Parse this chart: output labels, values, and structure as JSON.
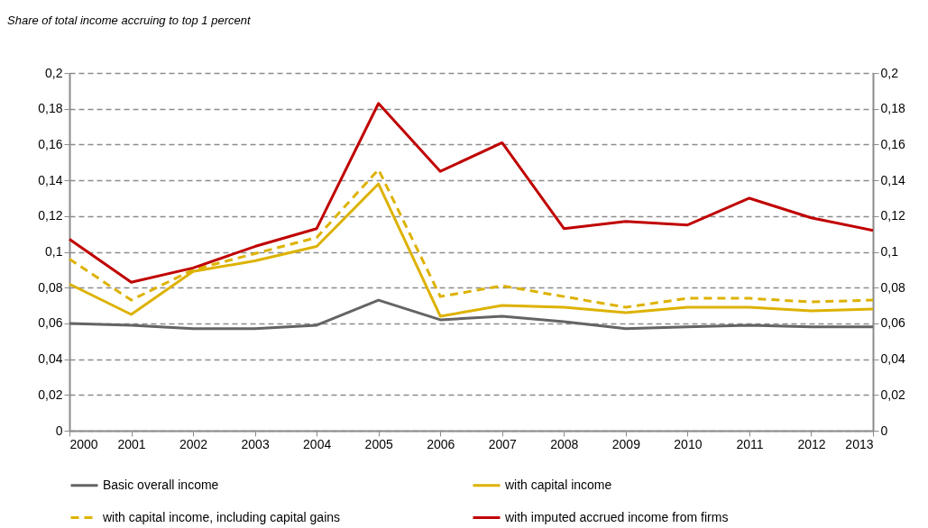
{
  "chart_data": {
    "type": "line",
    "title": "Share of total income accruing to top 1 percent",
    "x": [
      2000,
      2001,
      2002,
      2003,
      2004,
      2005,
      2006,
      2007,
      2008,
      2009,
      2010,
      2011,
      2012,
      2013
    ],
    "xlim": [
      2000,
      2013
    ],
    "xticks": [
      2000,
      2001,
      2002,
      2003,
      2004,
      2005,
      2006,
      2007,
      2008,
      2009,
      2010,
      2011,
      2012,
      2013
    ],
    "ylim": [
      0,
      0.2
    ],
    "yticks": [
      0,
      {
        "value": 0.02,
        "label": "0,02"
      },
      {
        "value": 0.04,
        "label": "0,04"
      },
      {
        "value": 0.06,
        "label": "0,06"
      },
      {
        "value": 0.08,
        "label": "0,08"
      },
      {
        "value": 0.1,
        "label": "0,1"
      },
      {
        "value": 0.12,
        "label": "0,12"
      },
      {
        "value": 0.14,
        "label": "0,14"
      },
      {
        "value": 0.16,
        "label": "0,16"
      },
      {
        "value": 0.18,
        "label": "0,18"
      },
      {
        "value": 0.2,
        "label": "0,2"
      }
    ],
    "y2lim": [
      0,
      0.2
    ],
    "y2ticks": [
      0,
      {
        "value": 0.02,
        "label": "0,02"
      },
      {
        "value": 0.04,
        "label": "0,04"
      },
      {
        "value": 0.06,
        "label": "0,06"
      },
      {
        "value": 0.08,
        "label": "0,08"
      },
      {
        "value": 0.1,
        "label": "0,1"
      },
      {
        "value": 0.12,
        "label": "0,12"
      },
      {
        "value": 0.14,
        "label": "0,14"
      },
      {
        "value": 0.16,
        "label": "0,16"
      },
      {
        "value": 0.18,
        "label": "0,18"
      },
      {
        "value": 0.2,
        "label": "0,2"
      }
    ],
    "grid": "y",
    "legend": "bottom",
    "marker": "none",
    "series": [
      {
        "name": "Basic overall income",
        "color": "#646464",
        "line_style": "solid",
        "values": [
          0.06,
          0.059,
          0.057,
          0.057,
          0.059,
          0.073,
          0.062,
          0.064,
          0.061,
          0.057,
          0.058,
          0.059,
          0.058,
          0.058
        ]
      },
      {
        "name": "with capital income",
        "color": "#ddb200",
        "line_style": "solid",
        "values": [
          0.082,
          0.065,
          0.089,
          0.095,
          0.103,
          0.138,
          0.064,
          0.07,
          0.069,
          0.066,
          0.069,
          0.069,
          0.067,
          0.068
        ]
      },
      {
        "name": "with capital income, including capital gains",
        "color": "#ddb200",
        "line_style": "dashed",
        "values": [
          0.096,
          0.073,
          0.09,
          0.099,
          0.108,
          0.146,
          0.075,
          0.081,
          0.075,
          0.069,
          0.074,
          0.074,
          0.072,
          0.073
        ]
      },
      {
        "name": "with imputed accrued income from firms",
        "color": "#c00000",
        "line_style": "solid",
        "values": [
          0.107,
          0.083,
          0.091,
          0.103,
          0.113,
          0.183,
          0.145,
          0.161,
          0.113,
          0.117,
          0.115,
          0.13,
          0.119,
          0.112
        ]
      }
    ]
  }
}
